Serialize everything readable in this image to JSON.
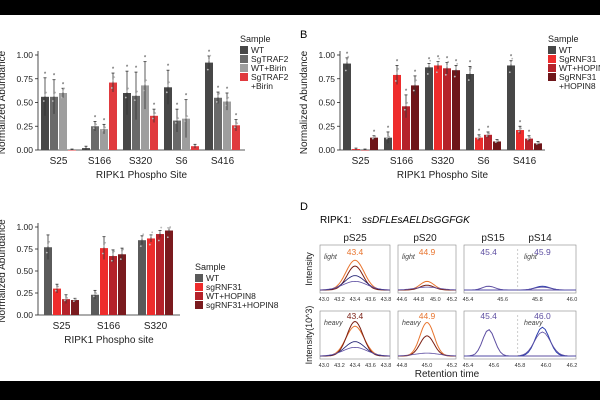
{
  "panels": {
    "b": "B",
    "d": "D"
  },
  "panel_d": {
    "label": "RIPK1:",
    "sequence": "ssDFLEsAELDsGGFGK",
    "site_labels": [
      "pS25",
      "pS20",
      "pS15",
      "pS14"
    ],
    "row_labels": [
      "light",
      "heavy"
    ],
    "ylabel_top": "Intensity",
    "ylabel_bottom": "Intensity(10^3)",
    "xlabel": "Retention time",
    "peak_values": [
      "43.4",
      "44.9",
      "45.4",
      "45.9",
      "43.4",
      "44.9",
      "45.4",
      "46.0"
    ],
    "ticks": [
      [
        "43.0",
        "43.2",
        "43.4",
        "43.6",
        "43.8"
      ],
      [
        "44.6",
        "44.8",
        "45.0",
        "45.2"
      ],
      [
        "45.4",
        "45.6",
        "45.8",
        "46.0"
      ],
      []
    ],
    "bottom_ticks": [
      [
        "43.0",
        "43.2",
        "43.4",
        "43.6",
        "43.8"
      ],
      [
        "44.8",
        "45.0",
        "45.2"
      ],
      [
        "45.4",
        "45.6",
        "45.8",
        "46.0",
        "46.2"
      ]
    ],
    "colors": {
      "orange": "#e8742e",
      "darkred": "#7a1f14",
      "purple": "#5e4fa2",
      "blue": "#2c3fae",
      "navy": "#1a1a6e"
    }
  },
  "chart_data": [
    {
      "type": "bar",
      "title": "",
      "xlabel": "RIPK1 Phospho Site",
      "ylabel": "Normalized Abundance",
      "ylim": [
        0,
        1.0
      ],
      "yticks": [
        "0.00",
        "0.25",
        "0.50",
        "0.75",
        "1.00"
      ],
      "categories": [
        "S25",
        "S166",
        "S320",
        "S6",
        "S416"
      ],
      "legend_title": "Sample",
      "series": [
        {
          "name": "WT",
          "color": "#474747",
          "values": [
            0.56,
            0.02,
            0.6,
            0.66,
            0.92
          ],
          "errors": [
            0.2,
            0.02,
            0.23,
            0.18,
            0.07
          ]
        },
        {
          "name": "SgTRAF2",
          "color": "#6a6a6a",
          "values": [
            0.56,
            0.25,
            0.57,
            0.31,
            0.55
          ],
          "errors": [
            0.18,
            0.05,
            0.25,
            0.12,
            0.06
          ]
        },
        {
          "name": "WT+Birin",
          "color": "#9e9e9e",
          "values": [
            0.6,
            0.22,
            0.68,
            0.33,
            0.51
          ],
          "errors": [
            0.05,
            0.05,
            0.25,
            0.2,
            0.09
          ]
        },
        {
          "name": "SgTRAF2 +Birin",
          "color": "#e03a3e",
          "values": [
            0.0,
            0.71,
            0.36,
            0.04,
            0.26
          ],
          "errors": [
            0.01,
            0.1,
            0.07,
            0.02,
            0.06
          ]
        }
      ],
      "annotations": [
        "*"
      ]
    },
    {
      "type": "bar",
      "title": "",
      "xlabel": "RIPK1 Phospho Site",
      "ylabel": "Normalized Abundance",
      "ylim": [
        0,
        1.0
      ],
      "yticks": [
        "0.00",
        "0.25",
        "0.50",
        "0.75",
        "1.00"
      ],
      "categories": [
        "S25",
        "S166",
        "S320",
        "S6",
        "S416"
      ],
      "legend_title": "Sample",
      "series": [
        {
          "name": "WT",
          "color": "#474747",
          "values": [
            0.91,
            0.13,
            0.87,
            0.8,
            0.89
          ],
          "errors": [
            0.06,
            0.06,
            0.04,
            0.08,
            0.05
          ]
        },
        {
          "name": "SgRNF31",
          "color": "#ee2c2c",
          "values": [
            0.01,
            0.79,
            0.89,
            0.13,
            0.21
          ],
          "errors": [
            0.01,
            0.1,
            0.04,
            0.03,
            0.04
          ]
        },
        {
          "name": "WT+HOPIN8",
          "color": "#b5222a",
          "values": [
            0.0,
            0.46,
            0.86,
            0.16,
            0.12
          ],
          "errors": [
            0.01,
            0.12,
            0.06,
            0.03,
            0.03
          ]
        },
        {
          "name": "SgRNF31 +HOPIN8",
          "color": "#6e1519",
          "values": [
            0.13,
            0.68,
            0.84,
            0.09,
            0.07
          ],
          "errors": [
            0.02,
            0.1,
            0.05,
            0.02,
            0.02
          ]
        }
      ],
      "annotations": [
        "*"
      ]
    },
    {
      "type": "bar",
      "title": "",
      "xlabel": "RIPK1 Phospho site",
      "ylabel": "Normalized Abundance",
      "ylim": [
        0,
        1.0
      ],
      "yticks": [
        "0.00",
        "0.25",
        "0.50",
        "0.75",
        "1.00"
      ],
      "categories": [
        "S25",
        "S166",
        "S320"
      ],
      "legend_title": "Sample",
      "series": [
        {
          "name": "WT",
          "color": "#5a5a5a",
          "values": [
            0.77,
            0.23,
            0.85
          ],
          "errors": [
            0.14,
            0.05,
            0.05
          ]
        },
        {
          "name": "sgRNF31",
          "color": "#ee2c2c",
          "values": [
            0.3,
            0.76,
            0.87
          ],
          "errors": [
            0.05,
            0.13,
            0.04
          ]
        },
        {
          "name": "WT+HOPIN8",
          "color": "#b5222a",
          "values": [
            0.18,
            0.67,
            0.92
          ],
          "errors": [
            0.05,
            0.07,
            0.04
          ]
        },
        {
          "name": "sgRNF31+HOPIN8",
          "color": "#7a1a1e",
          "values": [
            0.17,
            0.69,
            0.96
          ],
          "errors": [
            0.02,
            0.07,
            0.03
          ]
        }
      ]
    }
  ]
}
